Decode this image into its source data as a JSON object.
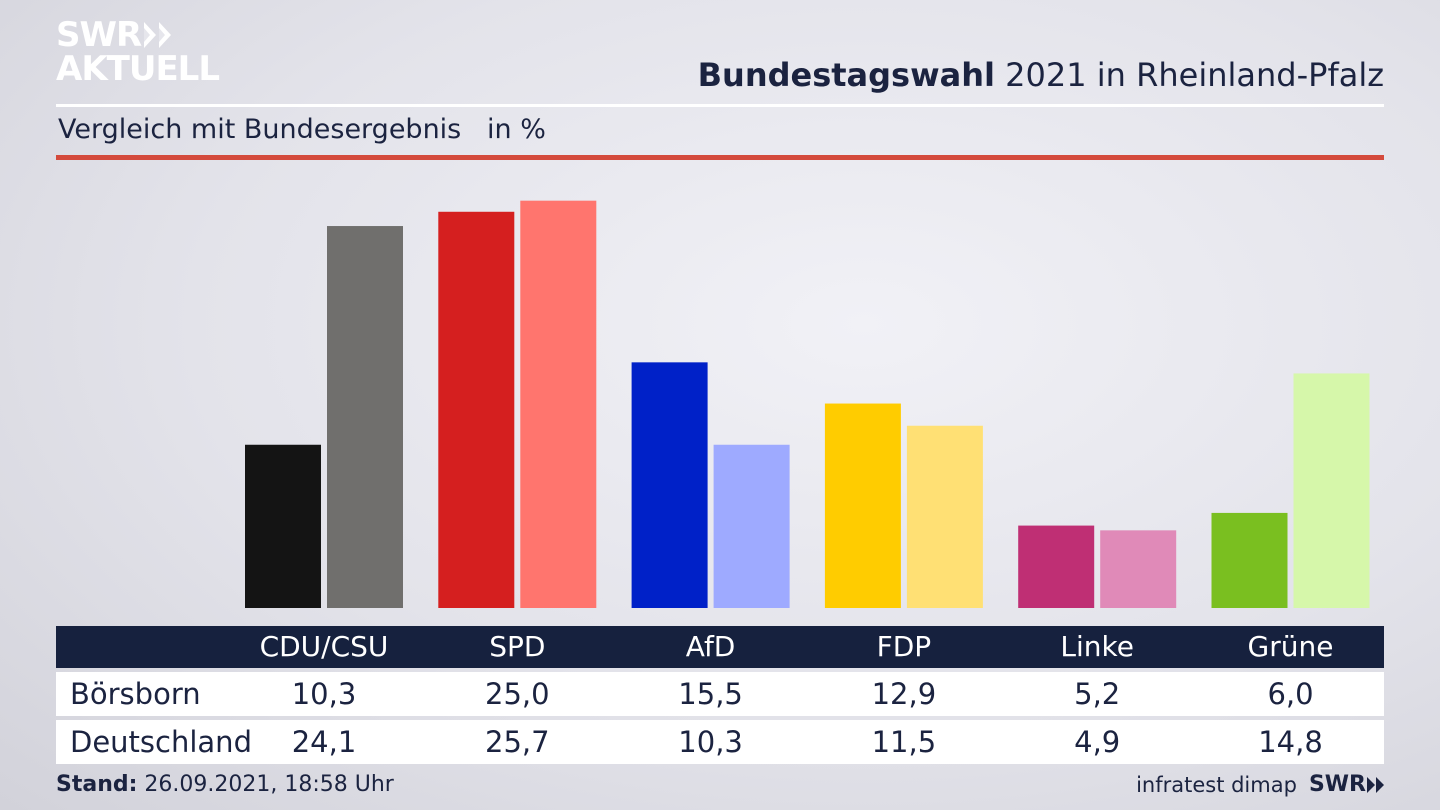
{
  "logo": {
    "line1": "SWR",
    "line2": "AKTUELL"
  },
  "heading": {
    "bold": "Bundestagswahl",
    "rest": " 2021 in Rheinland-Pfalz"
  },
  "subtitle": "Vergleich mit Bundesergebnis   in %",
  "chart_data": {
    "type": "bar",
    "categories": [
      "CDU/CSU",
      "SPD",
      "AfD",
      "FDP",
      "Linke",
      "Grüne"
    ],
    "series": [
      {
        "name": "Börsborn",
        "values": [
          10.3,
          25.0,
          15.5,
          12.9,
          5.2,
          6.0
        ],
        "colors": [
          "#141414",
          "#d51f1f",
          "#0021c8",
          "#ffcc00",
          "#bf2f74",
          "#7abf20"
        ]
      },
      {
        "name": "Deutschland",
        "values": [
          24.1,
          25.7,
          10.3,
          11.5,
          4.9,
          14.8
        ],
        "colors": [
          "#706f6d",
          "#ff756e",
          "#9eaaff",
          "#ffe074",
          "#e08ab8",
          "#d6f7aa"
        ]
      }
    ],
    "ylim": [
      0,
      26.5
    ],
    "grid": false
  },
  "table": {
    "headers": [
      "CDU/CSU",
      "SPD",
      "AfD",
      "FDP",
      "Linke",
      "Grüne"
    ],
    "rows": [
      {
        "label": "Börsborn",
        "values": [
          "10,3",
          "25,0",
          "15,5",
          "12,9",
          "5,2",
          "6,0"
        ]
      },
      {
        "label": "Deutschland",
        "values": [
          "24,1",
          "25,7",
          "10,3",
          "11,5",
          "4,9",
          "14,8"
        ]
      }
    ]
  },
  "footer": {
    "stand_label": "Stand:",
    "stand_value": " 26.09.2021, 18:58 Uhr",
    "source": "infratest dimap",
    "brand": "SWR"
  }
}
